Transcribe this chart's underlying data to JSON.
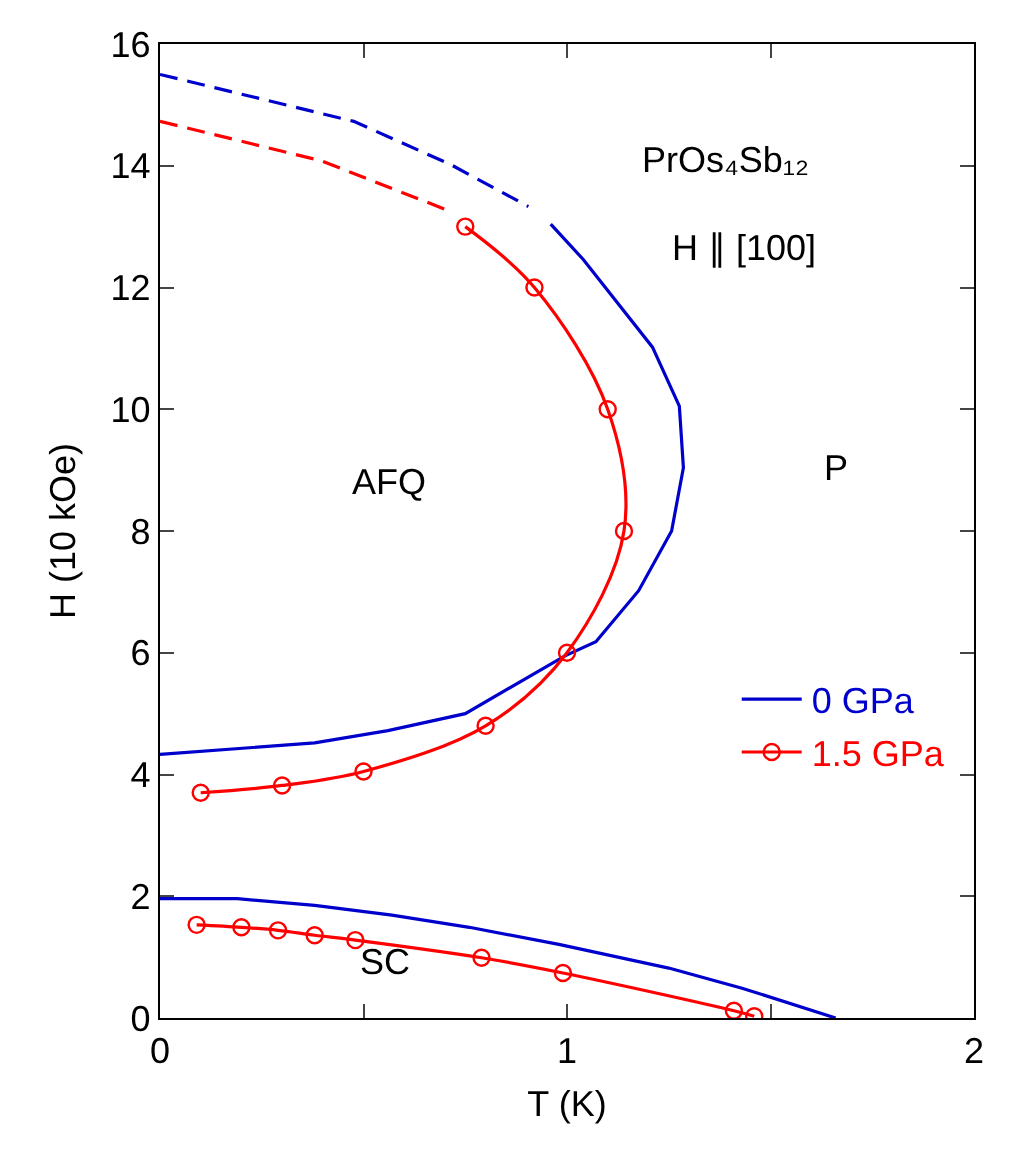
{
  "chart_data": {
    "type": "line",
    "xlabel": "T (K)",
    "ylabel": "H (10 kOe)",
    "xlim": [
      0,
      2
    ],
    "xticks": [
      0,
      {
        "value": 0.5,
        "label": null
      },
      1,
      {
        "value": 1.5,
        "label": null
      },
      2
    ],
    "ylim": [
      0,
      16
    ],
    "yticks": [
      0,
      2,
      4,
      6,
      8,
      10,
      12,
      14,
      16
    ],
    "grid": false,
    "legend": "right",
    "series": [
      {
        "name": "0 GPa",
        "color": "#0000cc",
        "marker": "none",
        "line_style": "solid",
        "x": [
          0.96,
          1.04,
          1.21,
          1.276,
          1.286,
          1.257,
          1.176,
          1.071,
          0.995,
          0.75,
          0.56,
          0.38,
          0
        ],
        "values": [
          13.04,
          12.46,
          11.02,
          10.05,
          9.04,
          8.0,
          7.02,
          6.18,
          5.95,
          5.0,
          4.72,
          4.52,
          4.33
        ]
      },
      {
        "color": "#0000cc",
        "marker": "none",
        "line_style": "dashed",
        "x": [
          0,
          0.476,
          0.714,
          0.905
        ],
        "values": [
          15.5,
          14.73,
          14.02,
          13.33
        ]
      },
      {
        "color": "#0000cc",
        "marker": "none",
        "line_style": "solid",
        "x": [
          0,
          0.19,
          0.38,
          0.57,
          0.76,
          0.98,
          1.25,
          1.43,
          1.66
        ],
        "values": [
          1.96,
          1.96,
          1.85,
          1.69,
          1.49,
          1.21,
          0.82,
          0.49,
          0
        ]
      },
      {
        "name": "1.5 GPa",
        "color": "#ff0000",
        "marker": "circle",
        "line_style": "solid",
        "x": [
          0.75,
          0.92,
          1.1,
          1.14,
          1.0,
          0.8,
          0.5,
          0.3,
          0.1
        ],
        "values": [
          13.0,
          12.0,
          10.0,
          8.0,
          6.0,
          4.8,
          4.05,
          3.82,
          3.7
        ]
      },
      {
        "color": "#ff0000",
        "marker": "none",
        "line_style": "dashed",
        "x": [
          0,
          0.397,
          0.706
        ],
        "values": [
          14.73,
          14.08,
          13.27
        ]
      },
      {
        "color": "#ff0000",
        "marker": "circle",
        "line_style": "solid",
        "x": [
          0.09,
          0.2,
          0.29,
          0.38,
          0.48,
          0.79,
          0.99,
          1.41,
          1.46
        ],
        "values": [
          1.53,
          1.49,
          1.44,
          1.36,
          1.28,
          0.99,
          0.74,
          0.12,
          0.03
        ]
      }
    ],
    "annotations": [
      "PrOs₄Sb₁₂",
      "H ∥ [100]",
      "AFQ",
      "P",
      "SC"
    ]
  }
}
